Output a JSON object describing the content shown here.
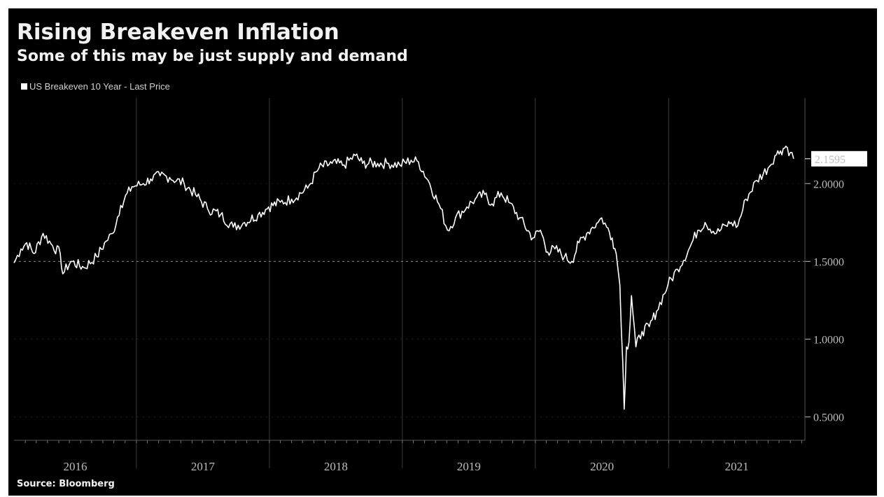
{
  "chart_data": {
    "type": "line",
    "title": "Rising Breakeven Inflation",
    "subtitle": "Some of this may be just supply and demand",
    "source": "Source: Bloomberg",
    "legend": {
      "placement": "top-left",
      "entries": [
        "US Breakeven 10 Year - Last Price"
      ]
    },
    "series": [
      {
        "name": "US Breakeven 10 Year - Last Price",
        "color": "#ffffff",
        "points": [
          [
            "2015-10-01",
            1.49
          ],
          [
            "2015-10-20",
            1.58
          ],
          [
            "2015-11-05",
            1.62
          ],
          [
            "2015-11-25",
            1.55
          ],
          [
            "2015-12-20",
            1.68
          ],
          [
            "2016-01-15",
            1.6
          ],
          [
            "2016-02-05",
            1.55
          ],
          [
            "2016-02-12",
            1.42
          ],
          [
            "2016-03-05",
            1.5
          ],
          [
            "2016-04-10",
            1.46
          ],
          [
            "2016-05-15",
            1.53
          ],
          [
            "2016-06-10",
            1.63
          ],
          [
            "2016-06-28",
            1.68
          ],
          [
            "2016-07-20",
            1.86
          ],
          [
            "2016-08-20",
            1.98
          ],
          [
            "2016-09-20",
            2.0
          ],
          [
            "2016-10-10",
            2.03
          ],
          [
            "2016-11-05",
            2.05
          ],
          [
            "2016-12-01",
            2.04
          ],
          [
            "2017-01-10",
            2.0
          ],
          [
            "2017-02-10",
            1.93
          ],
          [
            "2017-03-15",
            1.84
          ],
          [
            "2017-04-20",
            1.8
          ],
          [
            "2017-05-25",
            1.72
          ],
          [
            "2017-06-25",
            1.75
          ],
          [
            "2017-08-01",
            1.8
          ],
          [
            "2017-08-30",
            1.85
          ],
          [
            "2017-10-01",
            1.88
          ],
          [
            "2017-11-01",
            1.9
          ],
          [
            "2017-12-15",
            1.97
          ],
          [
            "2018-01-15",
            2.1
          ],
          [
            "2018-02-20",
            2.13
          ],
          [
            "2018-03-25",
            2.12
          ],
          [
            "2018-04-25",
            2.18
          ],
          [
            "2018-05-15",
            2.13
          ],
          [
            "2018-06-25",
            2.13
          ],
          [
            "2018-07-25",
            2.13
          ],
          [
            "2018-08-25",
            2.12
          ],
          [
            "2018-09-25",
            2.15
          ],
          [
            "2018-10-15",
            2.14
          ],
          [
            "2018-11-15",
            2.0
          ],
          [
            "2018-12-15",
            1.84
          ],
          [
            "2019-01-03",
            1.7
          ],
          [
            "2019-01-25",
            1.78
          ],
          [
            "2019-02-25",
            1.85
          ],
          [
            "2019-03-20",
            1.9
          ],
          [
            "2019-04-15",
            1.93
          ],
          [
            "2019-05-05",
            1.87
          ],
          [
            "2019-05-30",
            1.94
          ],
          [
            "2019-06-20",
            1.88
          ],
          [
            "2019-07-20",
            1.78
          ],
          [
            "2019-08-25",
            1.65
          ],
          [
            "2019-09-15",
            1.7
          ],
          [
            "2019-10-05",
            1.56
          ],
          [
            "2019-10-25",
            1.58
          ],
          [
            "2019-11-20",
            1.53
          ],
          [
            "2019-12-10",
            1.5
          ],
          [
            "2019-12-30",
            1.62
          ],
          [
            "2020-01-20",
            1.68
          ],
          [
            "2020-02-05",
            1.72
          ],
          [
            "2020-02-20",
            1.75
          ],
          [
            "2020-03-01",
            1.78
          ],
          [
            "2020-03-15",
            1.72
          ],
          [
            "2020-03-30",
            1.65
          ],
          [
            "2020-04-10",
            1.55
          ],
          [
            "2020-04-20",
            1.35
          ],
          [
            "2020-04-28",
            0.85
          ],
          [
            "2020-05-02",
            0.55
          ],
          [
            "2020-05-08",
            0.95
          ],
          [
            "2020-05-15",
            0.98
          ],
          [
            "2020-05-22",
            1.28
          ],
          [
            "2020-06-03",
            0.95
          ],
          [
            "2020-06-20",
            1.05
          ],
          [
            "2020-07-10",
            1.08
          ],
          [
            "2020-07-30",
            1.18
          ],
          [
            "2020-08-30",
            1.35
          ],
          [
            "2020-09-25",
            1.45
          ],
          [
            "2020-10-25",
            1.57
          ],
          [
            "2020-11-20",
            1.7
          ],
          [
            "2020-12-10",
            1.75
          ],
          [
            "2021-01-10",
            1.68
          ],
          [
            "2021-02-05",
            1.73
          ],
          [
            "2021-02-20",
            1.75
          ],
          [
            "2021-03-10",
            1.73
          ],
          [
            "2021-04-01",
            1.9
          ],
          [
            "2021-05-01",
            2.02
          ],
          [
            "2021-06-01",
            2.1
          ],
          [
            "2021-06-20",
            2.18
          ],
          [
            "2021-07-05",
            2.21
          ],
          [
            "2021-07-20",
            2.24
          ],
          [
            "2021-08-01",
            2.2
          ],
          [
            "2021-08-10",
            2.1595
          ]
        ]
      }
    ],
    "last_value_label": "2.1595",
    "y_axis": {
      "position": "right",
      "range": [
        0.35,
        2.55
      ],
      "ticks": [
        {
          "value": 0.5,
          "label": "0.5000"
        },
        {
          "value": 1.0,
          "label": "1.0000"
        },
        {
          "value": 1.5,
          "label": "1.5000"
        },
        {
          "value": 2.0,
          "label": "2.0000"
        }
      ],
      "reference_line": 1.5
    },
    "x_axis": {
      "range": [
        "2015-10-01",
        "2021-09-10"
      ],
      "year_labels": [
        "2016",
        "2017",
        "2018",
        "2019",
        "2020",
        "2021"
      ],
      "year_boundaries": [
        "2016-09-01",
        "2017-09-01",
        "2018-09-01",
        "2019-09-01",
        "2020-09-01"
      ]
    },
    "grid": true,
    "colors": {
      "background": "#000000",
      "line": "#ffffff",
      "text": "#f2f2f2"
    }
  }
}
